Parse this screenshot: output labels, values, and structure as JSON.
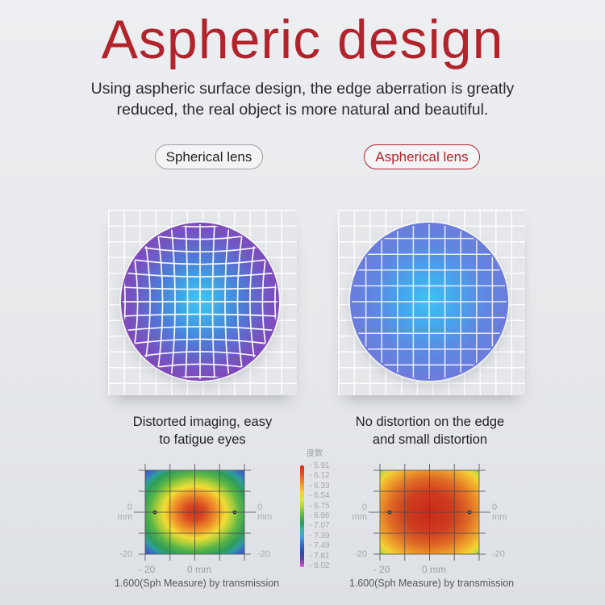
{
  "header": {
    "title": "Aspheric design",
    "subtitle_line1": "Using aspheric surface design, the edge aberration is greatly",
    "subtitle_line2": "reduced, the real object is more natural and beautiful."
  },
  "labels": {
    "spherical": "Spherical lens",
    "aspherical": "Aspherical lens"
  },
  "captions": {
    "left_line1": "Distorted imaging, easy",
    "left_line2": "to fatigue eyes",
    "right_line1": "No distortion on the edge",
    "right_line2": "and small distortion"
  },
  "heatmaps": {
    "caption": "1.600(Sph Measure) by transmission",
    "axis": {
      "zero": "0",
      "mm": "mm",
      "neg20": "-20",
      "x_neg20": "- 20",
      "x_zero": "0 mm"
    },
    "legend": {
      "title": "度数",
      "ticks": [
        "- 5.91",
        "- 6.12",
        "- 6.33",
        "- 6.54",
        "- 6.75",
        "- 6.96",
        "- 7.07",
        "- 7.39",
        "- 7.49",
        "- 7.81",
        "- 8.02"
      ]
    }
  },
  "colors": {
    "accent_red": "#b2242c",
    "pill_gray_border": "#9b9ea3",
    "text_dark": "#28282a",
    "axis_line": "#4a4c4f",
    "label_gray": "#a6a9ad"
  },
  "chart_data": [
    {
      "type": "heatmap",
      "title": "1.600(Sph Measure) by transmission",
      "lens": "spherical",
      "x_ticks": [
        "- 20",
        "0 mm"
      ],
      "y_side_ticks": [
        "0 mm",
        "-20"
      ],
      "legend_title": "度数",
      "legend_values": [
        -5.91,
        -6.12,
        -6.33,
        -6.54,
        -6.75,
        -6.96,
        -7.07,
        -7.39,
        -7.49,
        -7.81,
        -8.02
      ],
      "center_value": -5.91,
      "corner_value": -8.02,
      "pattern": "red center, orange-yellow ring, green outer ring, blue-violet corners",
      "grid": "4x4 cells, markers on horizontal center line near left and right edges"
    },
    {
      "type": "heatmap",
      "title": "1.600(Sph Measure) by transmission",
      "lens": "aspherical",
      "x_ticks": [
        "- 20",
        "0 mm"
      ],
      "y_side_ticks": [
        "0 mm",
        "-20"
      ],
      "legend_title": "度数",
      "legend_values": [
        -5.91,
        -6.12,
        -6.33,
        -6.54,
        -6.75,
        -6.96,
        -7.07,
        -7.39,
        -7.49,
        -7.81,
        -8.02
      ],
      "center_value": -5.91,
      "corner_value": -7.0,
      "pattern": "broad red-orange center, yellow edges, small green corners",
      "grid": "4x4 cells, markers on horizontal center line near left and right edges"
    }
  ],
  "render": {
    "page_bg": [
      "#edeef1",
      "#e7e9ec",
      "#dde0e5"
    ],
    "panel": {
      "bg": "#e5e7ea",
      "line": "rgba(255,255,255,0.9)",
      "cell": 19.5
    },
    "lens_left": {
      "clip": "clipL",
      "stops": [
        [
          "#45c8f5",
          "0%"
        ],
        [
          "#3dade8",
          "15%"
        ],
        [
          "#4b7fd8",
          "36%"
        ],
        [
          "#7454c2",
          "60%"
        ],
        [
          "#8c3fb3",
          "80%"
        ],
        [
          "#8736ab",
          "100%"
        ]
      ],
      "grid": {
        "n": 6,
        "spacing": 18,
        "pinch": 0.68,
        "flare": 1.04,
        "stroke": "rgba(255,255,255,0.95)",
        "width": 1.7,
        "distort": true
      }
    },
    "lens_right": {
      "clip": "clipR",
      "stops": [
        [
          "#3fc2f2",
          "0%"
        ],
        [
          "#45a6ee",
          "24%"
        ],
        [
          "#5f86e2",
          "50%"
        ],
        [
          "#6f79da",
          "75%"
        ],
        [
          "#777cde",
          "100%"
        ]
      ],
      "grid": {
        "n": 5,
        "spacing": 19.6,
        "pinch": 1,
        "flare": 1,
        "stroke": "rgba(255,255,255,0.85)",
        "width": 1.5,
        "distort": false
      }
    },
    "heatmap_left_stops": [
      [
        "#cd2d1d",
        "0%"
      ],
      [
        "#d84a22",
        "14%"
      ],
      [
        "#ef9029",
        "30%"
      ],
      [
        "#f2dc36",
        "44%"
      ],
      [
        "#accf3a",
        "54%"
      ],
      [
        "#5cb648",
        "64%"
      ],
      [
        "#2f9d58",
        "76%"
      ],
      [
        "#2f9e98",
        "84%"
      ],
      [
        "#3a6fc5",
        "92%"
      ],
      [
        "#3353bd",
        "100%"
      ]
    ],
    "heatmap_right_stops": [
      [
        "#c8291b",
        "0%"
      ],
      [
        "#cf3d1f",
        "35%"
      ],
      [
        "#e06d26",
        "58%"
      ],
      [
        "#efa42c",
        "75%"
      ],
      [
        "#f0d434",
        "88%"
      ],
      [
        "#c3d93c",
        "95%"
      ],
      [
        "#7cbf45",
        "100%"
      ]
    ],
    "legend_stops": [
      [
        "#d7271d",
        "0%"
      ],
      [
        "#e44f24",
        "8%"
      ],
      [
        "#f08c29",
        "17%"
      ],
      [
        "#f2ce33",
        "26%"
      ],
      [
        "#dfe83c",
        "34%"
      ],
      [
        "#9ecf3e",
        "42%"
      ],
      [
        "#55b44a",
        "50%"
      ],
      [
        "#2f9d5f",
        "57%"
      ],
      [
        "#35b2a4",
        "63%"
      ],
      [
        "#41a0dc",
        "70%"
      ],
      [
        "#3a6fc8",
        "77%"
      ],
      [
        "#2c4aae",
        "85%"
      ],
      [
        "#584099",
        "92%"
      ],
      [
        "#b04cb8",
        "97%"
      ],
      [
        "#d957c9",
        "100%"
      ]
    ],
    "axes": {
      "w": 123,
      "h": 104,
      "pad": 14,
      "ext": 8,
      "ext_center": 14,
      "vx": [
        0,
        30.75,
        61.5,
        92.25,
        123
      ],
      "hy": [
        0,
        26,
        52,
        78,
        104
      ],
      "dots": [
        12,
        111
      ],
      "stroke": "#4a4c4f",
      "dot_fill": "#2e3032"
    }
  }
}
